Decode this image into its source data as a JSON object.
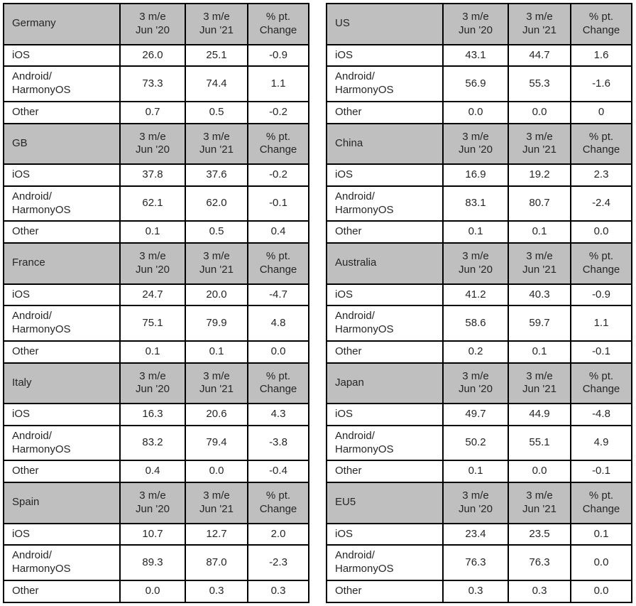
{
  "colors": {
    "header_background": "#BFBFBF",
    "border": "#000000",
    "text": "#262626",
    "row_background": "#FFFFFF"
  },
  "chart_data": {
    "type": "table",
    "col_headers": [
      "3 m/e\nJun '20",
      "3 m/e\nJun '21",
      "% pt.\nChange"
    ],
    "row_labels": [
      "iOS",
      "Android/\nHarmonyOS",
      "Other"
    ],
    "tables": [
      {
        "country": "Germany",
        "rows": [
          {
            "label": "iOS",
            "values": [
              "26.0",
              "25.1",
              "-0.9"
            ]
          },
          {
            "label": "Android/\nHarmonyOS",
            "values": [
              "73.3",
              "74.4",
              "1.1"
            ]
          },
          {
            "label": "Other",
            "values": [
              "0.7",
              "0.5",
              "-0.2"
            ]
          }
        ]
      },
      {
        "country": "GB",
        "rows": [
          {
            "label": "iOS",
            "values": [
              "37.8",
              "37.6",
              "-0.2"
            ]
          },
          {
            "label": "Android/\nHarmonyOS",
            "values": [
              "62.1",
              "62.0",
              "-0.1"
            ]
          },
          {
            "label": "Other",
            "values": [
              "0.1",
              "0.5",
              "0.4"
            ]
          }
        ]
      },
      {
        "country": "France",
        "rows": [
          {
            "label": "iOS",
            "values": [
              "24.7",
              "20.0",
              "-4.7"
            ]
          },
          {
            "label": "Android/\nHarmonyOS",
            "values": [
              "75.1",
              "79.9",
              "4.8"
            ]
          },
          {
            "label": "Other",
            "values": [
              "0.1",
              "0.1",
              "0.0"
            ]
          }
        ]
      },
      {
        "country": "Italy",
        "rows": [
          {
            "label": "iOS",
            "values": [
              "16.3",
              "20.6",
              "4.3"
            ]
          },
          {
            "label": "Android/\nHarmonyOS",
            "values": [
              "83.2",
              "79.4",
              "-3.8"
            ]
          },
          {
            "label": "Other",
            "values": [
              "0.4",
              "0.0",
              "-0.4"
            ]
          }
        ]
      },
      {
        "country": "Spain",
        "rows": [
          {
            "label": "iOS",
            "values": [
              "10.7",
              "12.7",
              "2.0"
            ]
          },
          {
            "label": "Android/\nHarmonyOS",
            "values": [
              "89.3",
              "87.0",
              "-2.3"
            ]
          },
          {
            "label": "Other",
            "values": [
              "0.0",
              "0.3",
              "0.3"
            ]
          }
        ]
      },
      {
        "country": "US",
        "rows": [
          {
            "label": "iOS",
            "values": [
              "43.1",
              "44.7",
              "1.6"
            ]
          },
          {
            "label": "Android/\nHarmonyOS",
            "values": [
              "56.9",
              "55.3",
              "-1.6"
            ]
          },
          {
            "label": "Other",
            "values": [
              "0.0",
              "0.0",
              "0"
            ]
          }
        ]
      },
      {
        "country": "China",
        "rows": [
          {
            "label": "iOS",
            "values": [
              "16.9",
              "19.2",
              "2.3"
            ]
          },
          {
            "label": "Android/\nHarmonyOS",
            "values": [
              "83.1",
              "80.7",
              "-2.4"
            ]
          },
          {
            "label": "Other",
            "values": [
              "0.1",
              "0.1",
              "0.0"
            ]
          }
        ]
      },
      {
        "country": "Australia",
        "rows": [
          {
            "label": "iOS",
            "values": [
              "41.2",
              "40.3",
              "-0.9"
            ]
          },
          {
            "label": "Android/\nHarmonyOS",
            "values": [
              "58.6",
              "59.7",
              "1.1"
            ]
          },
          {
            "label": "Other",
            "values": [
              "0.2",
              "0.1",
              "-0.1"
            ]
          }
        ]
      },
      {
        "country": "Japan",
        "rows": [
          {
            "label": "iOS",
            "values": [
              "49.7",
              "44.9",
              "-4.8"
            ]
          },
          {
            "label": "Android/\nHarmonyOS",
            "values": [
              "50.2",
              "55.1",
              "4.9"
            ]
          },
          {
            "label": "Other",
            "values": [
              "0.1",
              "0.0",
              "-0.1"
            ]
          }
        ]
      },
      {
        "country": "EU5",
        "rows": [
          {
            "label": "iOS",
            "values": [
              "23.4",
              "23.5",
              "0.1"
            ]
          },
          {
            "label": "Android/\nHarmonyOS",
            "values": [
              "76.3",
              "76.3",
              "0.0"
            ]
          },
          {
            "label": "Other",
            "values": [
              "0.3",
              "0.3",
              "0.0"
            ]
          }
        ]
      }
    ]
  }
}
